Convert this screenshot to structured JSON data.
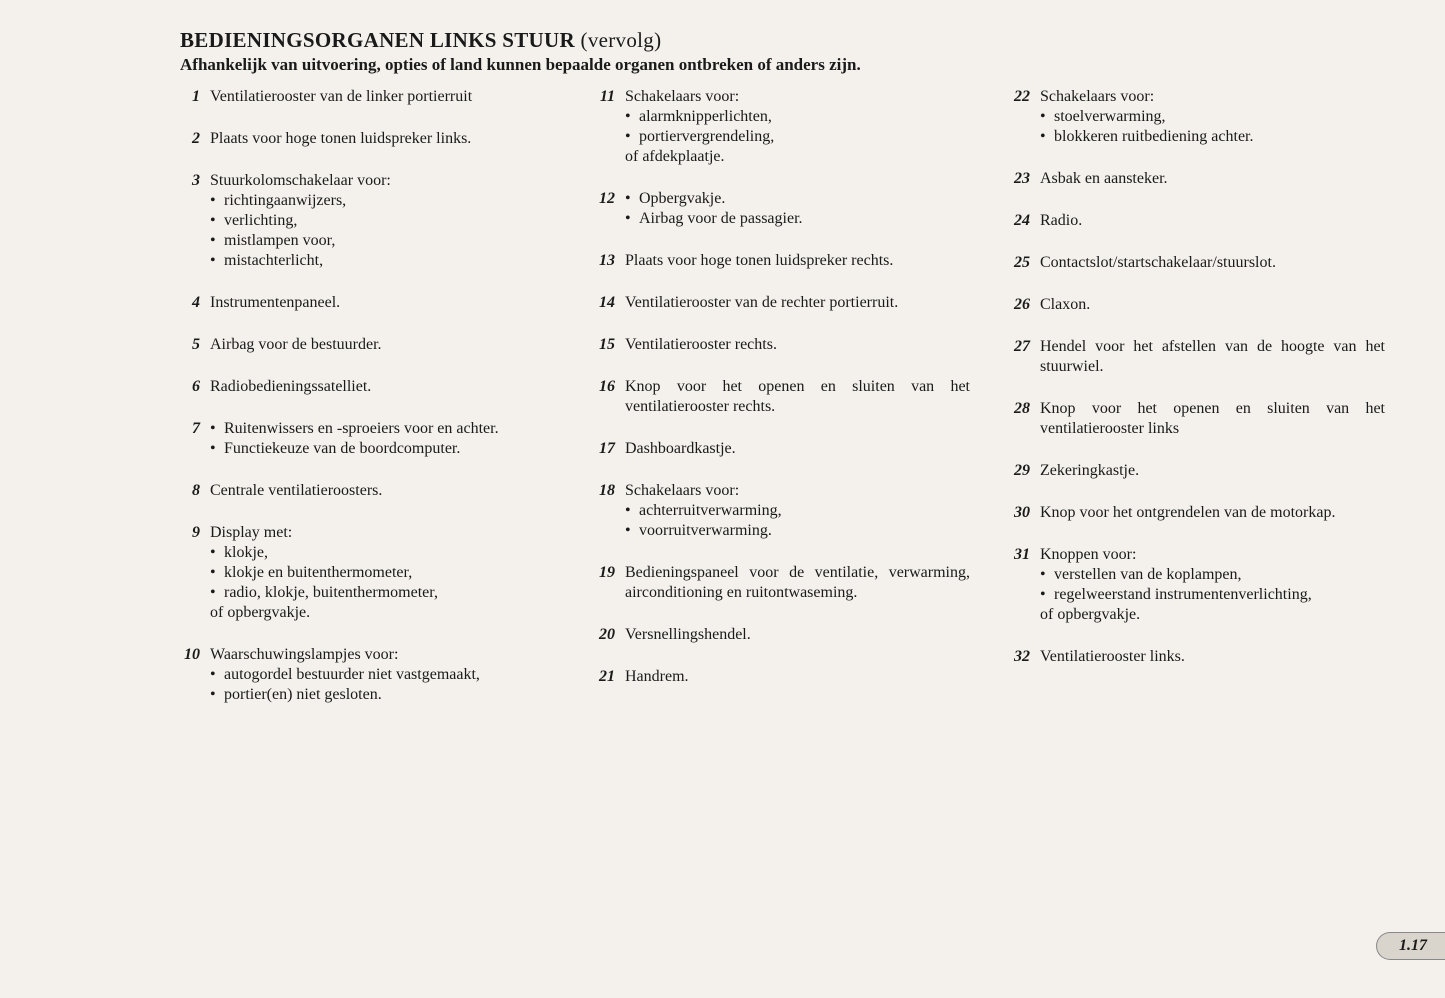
{
  "header": {
    "title_main": "BEDIENINGSORGANEN LINKS STUUR",
    "title_suffix": "(vervolg)",
    "subtitle": "Afhankelijk van uitvoering, opties of land kunnen bepaalde organen ontbreken of anders zijn."
  },
  "columns": [
    [
      {
        "num": "1",
        "text": "Ventilatierooster van de linker portierruit"
      },
      {
        "num": "2",
        "text": "Plaats voor hoge tonen luidspreker links."
      },
      {
        "num": "3",
        "text": "Stuurkolomschakelaar voor:",
        "bullets": [
          "richtingaanwijzers,",
          "verlichting,",
          "mistlampen voor,",
          "mistachterlicht,"
        ]
      },
      {
        "num": "4",
        "text": "Instrumentenpaneel."
      },
      {
        "num": "5",
        "text": "Airbag voor de bestuurder."
      },
      {
        "num": "6",
        "text": "Radiobedieningssatelliet."
      },
      {
        "num": "7",
        "bullets": [
          "Ruitenwissers en -sproeiers voor en achter.",
          "Functiekeuze van de boordcomputer."
        ]
      },
      {
        "num": "8",
        "text": "Centrale ventilatieroosters."
      },
      {
        "num": "9",
        "text": "Display met:",
        "bullets": [
          "klokje,",
          "klokje en buitenthermometer,",
          "radio, klokje, buitenthermometer,"
        ],
        "suffix": "of opbergvakje."
      },
      {
        "num": "10",
        "text": "Waarschuwingslampjes voor:",
        "bullets": [
          "autogordel bestuurder niet vastgemaakt,",
          "portier(en) niet gesloten."
        ]
      }
    ],
    [
      {
        "num": "11",
        "text": "Schakelaars voor:",
        "bullets": [
          "alarmknipperlichten,",
          "portiervergrendeling,"
        ],
        "suffix": "of afdekplaatje."
      },
      {
        "num": "12",
        "bullets": [
          "Opbergvakje.",
          "Airbag voor de passagier."
        ]
      },
      {
        "num": "13",
        "text": "Plaats voor hoge tonen luidspreker rechts."
      },
      {
        "num": "14",
        "text": "Ventilatierooster van de rechter portierruit."
      },
      {
        "num": "15",
        "text": "Ventilatierooster rechts."
      },
      {
        "num": "16",
        "text": "Knop voor het openen en sluiten van het ventilatierooster rechts."
      },
      {
        "num": "17",
        "text": "Dashboardkastje."
      },
      {
        "num": "18",
        "text": "Schakelaars voor:",
        "bullets": [
          "achterruitverwarming,",
          "voorruitverwarming."
        ]
      },
      {
        "num": "19",
        "text": "Bedieningspaneel voor de ventilatie, verwarming, airconditioning en ruitontwaseming."
      },
      {
        "num": "20",
        "text": "Versnellingshendel."
      },
      {
        "num": "21",
        "text": "Handrem."
      }
    ],
    [
      {
        "num": "22",
        "text": "Schakelaars voor:",
        "bullets": [
          "stoelverwarming,",
          "blokkeren ruitbediening achter."
        ]
      },
      {
        "num": "23",
        "text": "Asbak en aansteker."
      },
      {
        "num": "24",
        "text": "Radio."
      },
      {
        "num": "25",
        "text": "Contactslot/startschakelaar/stuurslot."
      },
      {
        "num": "26",
        "text": "Claxon."
      },
      {
        "num": "27",
        "text": "Hendel voor het afstellen van de hoogte van het stuurwiel."
      },
      {
        "num": "28",
        "text": "Knop voor het openen en sluiten van het ventilatierooster links"
      },
      {
        "num": "29",
        "text": "Zekeringkastje."
      },
      {
        "num": "30",
        "text": "Knop voor het ontgrendelen van de motorkap."
      },
      {
        "num": "31",
        "text": "Knoppen voor:",
        "bullets": [
          "verstellen van de koplampen,",
          "regelweerstand instrumentenverlichting,"
        ],
        "suffix": "of opbergvakje."
      },
      {
        "num": "32",
        "text": "Ventilatierooster links."
      }
    ]
  ],
  "page_number": "1.17"
}
